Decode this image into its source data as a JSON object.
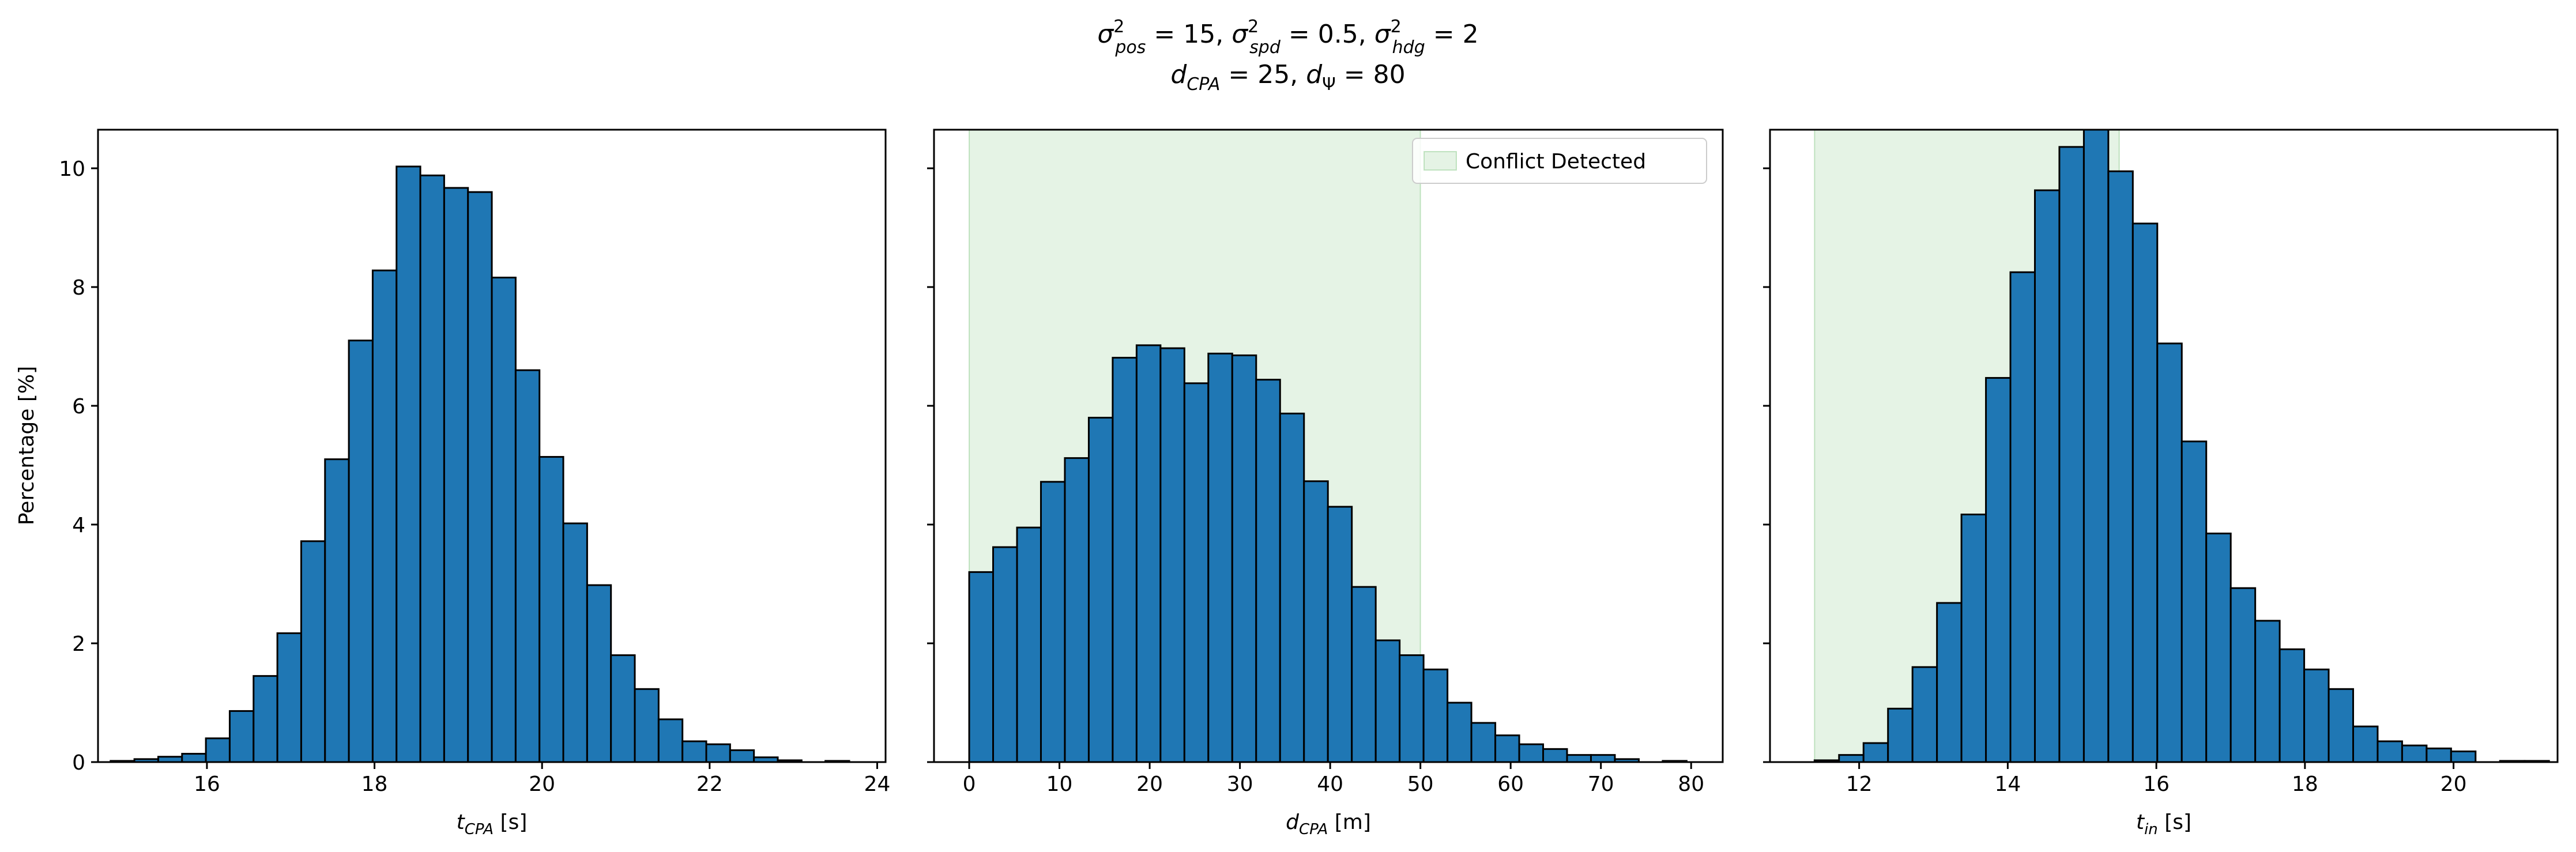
{
  "figure": {
    "title_line1": "σ²pos = 15, σ²spd = 0.5, σ²hdg = 2",
    "title_line2": "dCPA = 25, dΨ = 80"
  },
  "colors": {
    "bar": "#1f77b4",
    "bar_edge": "#000000",
    "region": "#2ca02c"
  },
  "chart_data": [
    {
      "type": "bar",
      "xlabel": "t_CPA [s]",
      "ylabel": "Percentage [%]",
      "xlim": [
        14.7,
        24.1
      ],
      "ylim": [
        0,
        10.65
      ],
      "xticks": [
        16,
        18,
        20,
        22,
        24
      ],
      "yticks": [
        0,
        2,
        4,
        6,
        8,
        10
      ],
      "bin_start": 14.85,
      "bin_width": 0.2844,
      "values": [
        0.02,
        0.05,
        0.09,
        0.14,
        0.4,
        0.86,
        1.45,
        2.17,
        3.72,
        5.1,
        7.1,
        8.28,
        10.03,
        9.88,
        9.67,
        9.6,
        8.16,
        6.6,
        5.14,
        4.02,
        2.98,
        1.8,
        1.23,
        0.72,
        0.35,
        0.3,
        0.2,
        0.08,
        0.03,
        0.0,
        0.02
      ]
    },
    {
      "type": "bar",
      "xlabel": "d_CPA [m]",
      "xlim": [
        -3.9,
        83.5
      ],
      "ylim": [
        0,
        10.65
      ],
      "xticks": [
        0,
        10,
        20,
        30,
        40,
        50,
        60,
        70,
        80
      ],
      "bin_start": 0.0,
      "bin_width": 2.65,
      "shaded_region": [
        0,
        50
      ],
      "legend": {
        "label": "Conflict Detected",
        "position": "upper right"
      },
      "values": [
        3.2,
        3.62,
        3.95,
        4.72,
        5.12,
        5.8,
        6.81,
        7.02,
        6.97,
        6.38,
        6.88,
        6.85,
        6.44,
        5.87,
        4.73,
        4.3,
        2.95,
        2.05,
        1.8,
        1.56,
        1.0,
        0.66,
        0.45,
        0.3,
        0.22,
        0.12,
        0.12,
        0.05,
        0.0,
        0.02
      ]
    },
    {
      "type": "bar",
      "xlabel": "t_in [s]",
      "xlim": [
        10.8,
        21.4
      ],
      "ylim": [
        0,
        10.65
      ],
      "xticks": [
        12,
        14,
        16,
        18,
        20
      ],
      "bin_start": 11.4,
      "bin_width": 0.3295,
      "shaded_region": [
        11.4,
        15.5
      ],
      "values": [
        0.03,
        0.12,
        0.32,
        0.9,
        1.6,
        2.68,
        4.17,
        6.47,
        8.25,
        9.63,
        10.36,
        10.75,
        9.95,
        9.07,
        7.05,
        5.4,
        3.85,
        2.93,
        2.38,
        1.9,
        1.56,
        1.23,
        0.6,
        0.35,
        0.28,
        0.23,
        0.18,
        0.0,
        0.02,
        0.02
      ]
    }
  ]
}
